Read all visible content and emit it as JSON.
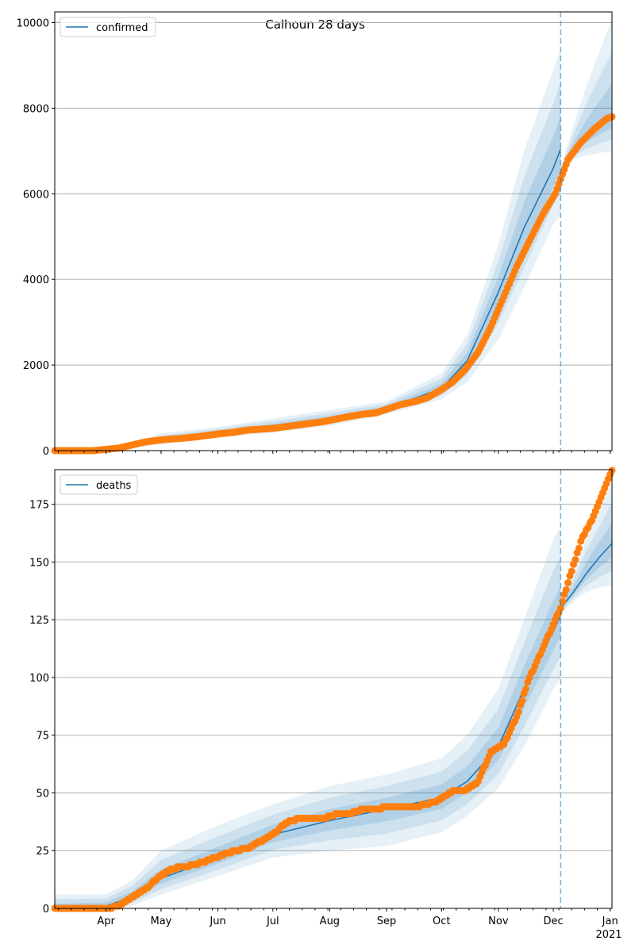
{
  "chart_data": [
    {
      "type": "line",
      "title": "Calhoun 28 days",
      "legend": [
        "confirmed"
      ],
      "legend_position": "top-left",
      "xlim": [
        "2020-03-04",
        "2021-01-02"
      ],
      "ylim": [
        0,
        10250
      ],
      "yticks": [
        0,
        2000,
        4000,
        6000,
        8000,
        10000
      ],
      "grid": "y",
      "forecast_start": "2020-12-05",
      "observed": {
        "x": [
          "2020-03-04",
          "2020-03-25",
          "2020-04-01",
          "2020-04-08",
          "2020-04-15",
          "2020-04-22",
          "2020-04-29",
          "2020-05-06",
          "2020-05-13",
          "2020-05-20",
          "2020-05-27",
          "2020-06-03",
          "2020-06-10",
          "2020-06-17",
          "2020-06-24",
          "2020-07-01",
          "2020-07-08",
          "2020-07-15",
          "2020-07-22",
          "2020-07-29",
          "2020-08-05",
          "2020-08-12",
          "2020-08-19",
          "2020-08-26",
          "2020-09-02",
          "2020-09-09",
          "2020-09-16",
          "2020-09-23",
          "2020-09-30",
          "2020-10-07",
          "2020-10-14",
          "2020-10-21",
          "2020-10-28",
          "2020-11-04",
          "2020-11-11",
          "2020-11-18",
          "2020-11-25",
          "2020-12-02",
          "2020-12-09",
          "2020-12-16",
          "2020-12-23",
          "2020-12-30",
          "2021-01-02"
        ],
        "y": [
          0,
          0,
          30,
          60,
          130,
          200,
          240,
          270,
          290,
          320,
          360,
          400,
          430,
          480,
          500,
          520,
          560,
          600,
          640,
          680,
          740,
          800,
          850,
          880,
          980,
          1080,
          1140,
          1230,
          1400,
          1600,
          1900,
          2300,
          2900,
          3600,
          4300,
          4900,
          5500,
          6000,
          6800,
          7200,
          7500,
          7750,
          7800
        ]
      },
      "model_fit": {
        "x": [
          "2020-03-04",
          "2020-03-25",
          "2020-04-15",
          "2020-05-01",
          "2020-06-01",
          "2020-07-01",
          "2020-08-01",
          "2020-09-01",
          "2020-10-01",
          "2020-10-15",
          "2020-11-01",
          "2020-11-15",
          "2020-12-01",
          "2020-12-05"
        ],
        "y": [
          0,
          0,
          120,
          250,
          420,
          560,
          740,
          980,
          1450,
          2100,
          3700,
          5200,
          6600,
          7050
        ],
        "low95": [
          0,
          0,
          60,
          150,
          300,
          420,
          580,
          850,
          1200,
          1600,
          2600,
          3800,
          5300,
          5500
        ],
        "high95": [
          0,
          30,
          200,
          400,
          550,
          750,
          950,
          1150,
          1800,
          2700,
          4800,
          7000,
          8900,
          9400
        ]
      },
      "model_forecast": {
        "x": [
          "2020-12-05",
          "2020-12-12",
          "2020-12-19",
          "2020-12-26",
          "2021-01-02"
        ],
        "y": [
          6550,
          7000,
          7350,
          7600,
          7800
        ],
        "low95": [
          6500,
          6800,
          6900,
          6950,
          7000
        ],
        "high95": [
          6600,
          7600,
          8500,
          9300,
          10100
        ]
      }
    },
    {
      "type": "line",
      "legend": [
        "deaths"
      ],
      "legend_position": "top-left",
      "xlim": [
        "2020-03-04",
        "2021-01-02"
      ],
      "ylim": [
        0,
        190
      ],
      "yticks": [
        0,
        25,
        50,
        75,
        100,
        125,
        150,
        175
      ],
      "xticks": [
        "Apr",
        "May",
        "Jun",
        "Jul",
        "Aug",
        "Sep",
        "Oct",
        "Nov",
        "Dec",
        "Jan"
      ],
      "xtick_dates": [
        "2020-04-01",
        "2020-05-01",
        "2020-06-01",
        "2020-07-01",
        "2020-08-01",
        "2020-09-01",
        "2020-10-01",
        "2020-11-01",
        "2020-12-01",
        "2021-01-01"
      ],
      "year_label": "2021",
      "grid": "y",
      "forecast_start": "2020-12-05",
      "observed": {
        "x": [
          "2020-03-04",
          "2020-04-01",
          "2020-04-08",
          "2020-04-15",
          "2020-04-22",
          "2020-04-29",
          "2020-05-06",
          "2020-05-13",
          "2020-05-20",
          "2020-05-27",
          "2020-06-03",
          "2020-06-10",
          "2020-06-17",
          "2020-06-24",
          "2020-07-01",
          "2020-07-08",
          "2020-07-15",
          "2020-07-22",
          "2020-07-29",
          "2020-08-05",
          "2020-08-12",
          "2020-08-19",
          "2020-08-26",
          "2020-09-02",
          "2020-09-09",
          "2020-09-16",
          "2020-09-23",
          "2020-09-30",
          "2020-10-07",
          "2020-10-14",
          "2020-10-21",
          "2020-10-28",
          "2020-11-04",
          "2020-11-11",
          "2020-11-18",
          "2020-11-25",
          "2020-12-02",
          "2020-12-05",
          "2020-12-09",
          "2020-12-16",
          "2020-12-23",
          "2020-12-30",
          "2021-01-02"
        ],
        "y": [
          0,
          0,
          1,
          5,
          8,
          13,
          17,
          18,
          19,
          21,
          23,
          25,
          26,
          29,
          32,
          37,
          39,
          39,
          39,
          41,
          41,
          43,
          43,
          44,
          44,
          44,
          45,
          47,
          51,
          51,
          55,
          68,
          71,
          83,
          100,
          112,
          125,
          130,
          141,
          159,
          170,
          184,
          190
        ]
      },
      "model_fit": {
        "x": [
          "2020-03-04",
          "2020-04-01",
          "2020-04-15",
          "2020-05-01",
          "2020-06-01",
          "2020-07-01",
          "2020-08-01",
          "2020-09-01",
          "2020-10-01",
          "2020-10-15",
          "2020-11-01",
          "2020-11-15",
          "2020-12-01",
          "2020-12-05"
        ],
        "y": [
          0,
          1,
          5,
          13,
          22,
          32,
          38,
          43,
          48,
          55,
          70,
          95,
          120,
          127
        ],
        "low95": [
          0,
          0,
          1,
          6,
          14,
          22,
          25,
          27,
          33,
          40,
          52,
          70,
          95,
          100
        ],
        "high95": [
          6,
          6,
          12,
          25,
          36,
          45,
          53,
          58,
          65,
          75,
          95,
          125,
          160,
          165
        ]
      },
      "model_forecast": {
        "x": [
          "2020-12-05",
          "2020-12-12",
          "2020-12-19",
          "2020-12-26",
          "2021-01-02"
        ],
        "y": [
          130,
          137,
          145,
          152,
          158
        ],
        "low95": [
          128,
          133,
          137,
          139,
          140
        ],
        "high95": [
          132,
          145,
          160,
          172,
          185
        ]
      }
    }
  ]
}
